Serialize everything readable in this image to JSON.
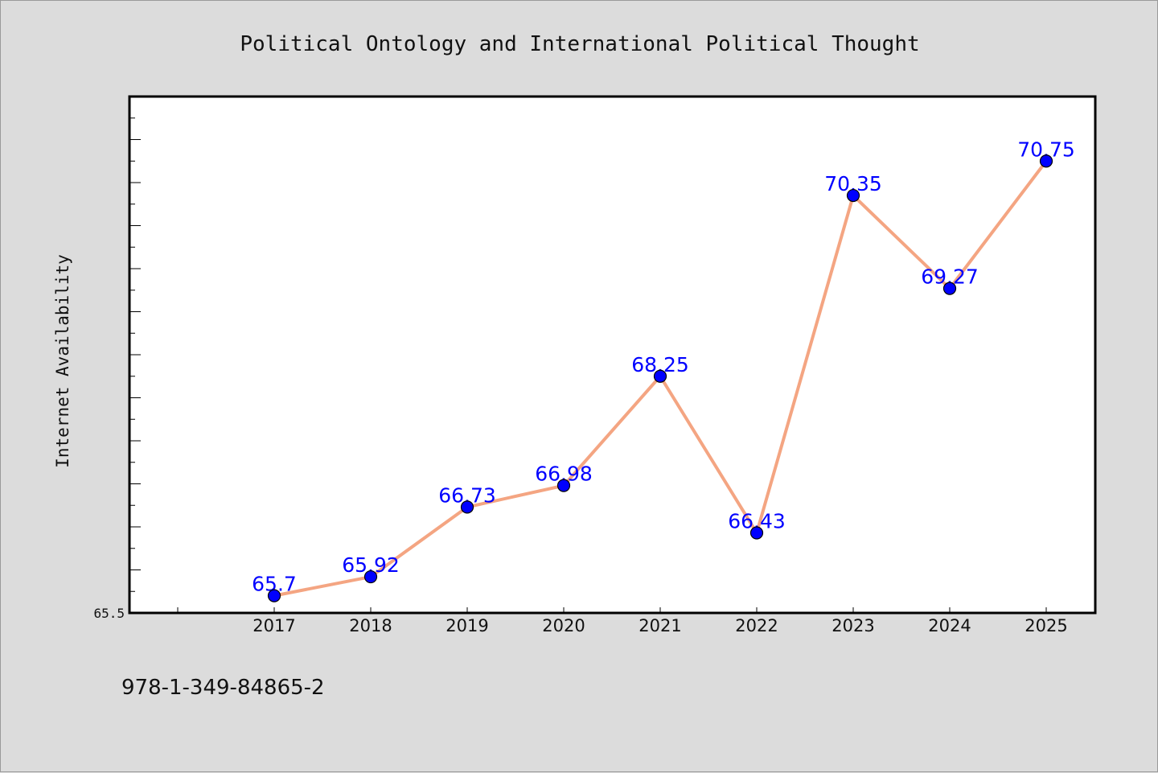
{
  "chart_data": {
    "type": "line",
    "title": "Political Ontology and International Political Thought",
    "xlabel": "",
    "ylabel": "Internet Availability",
    "categories": [
      "2017",
      "2018",
      "2019",
      "2020",
      "2021",
      "2022",
      "2023",
      "2024",
      "2025"
    ],
    "values": [
      65.7,
      65.92,
      66.73,
      66.98,
      68.25,
      66.43,
      70.35,
      69.27,
      70.75
    ],
    "data_labels": [
      "65.7",
      "65.92",
      "66.73",
      "66.98",
      "68.25",
      "66.43",
      "70.35",
      "69.27",
      "70.75"
    ],
    "ylim": [
      65.5,
      71.5
    ],
    "ytick_labels": [
      "65.5"
    ],
    "grid": false,
    "colors": {
      "line": "#f4a582",
      "marker": "#0000ff",
      "data_label": "#0000ff",
      "plot_background": "#ffffff",
      "figure_background": "#dcdcdc"
    }
  },
  "footer_text": "978-1-349-84865-2"
}
